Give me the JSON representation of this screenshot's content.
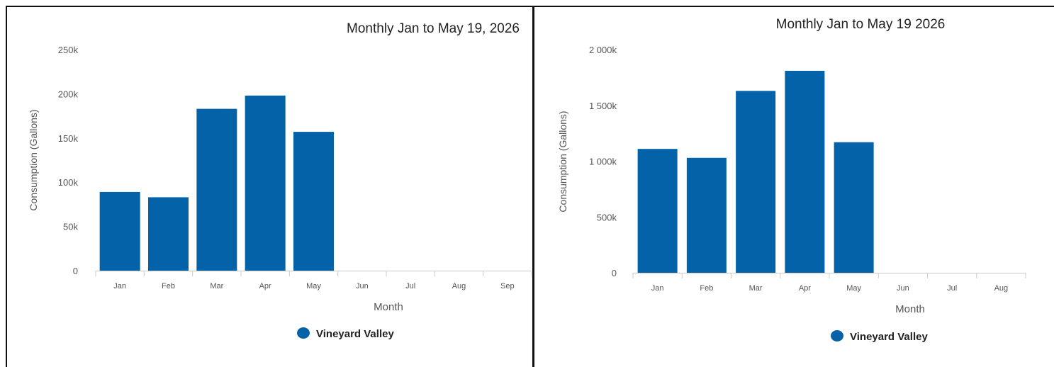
{
  "colors": {
    "bar": "#0462a9",
    "axis_text": "#555555",
    "title_text": "#222222",
    "legend_text": "#222222",
    "axis_line": "#cccccc",
    "border": "#111111"
  },
  "chart_data": [
    {
      "type": "bar",
      "title": "Monthly Jan to May 19, 2026",
      "xlabel": "Month",
      "ylabel": "Consumption (Gallons)",
      "categories": [
        "Jan",
        "Feb",
        "Mar",
        "Apr",
        "May",
        "Jun",
        "Jul",
        "Aug",
        "Sep"
      ],
      "y_ticks": [
        "0",
        "50k",
        "100k",
        "150k",
        "200k",
        "250k"
      ],
      "ylim": [
        0,
        250000
      ],
      "grid": false,
      "legend": "bottom-center",
      "series": [
        {
          "name": "Vineyard Valley",
          "values": [
            89000,
            83000,
            183000,
            198000,
            157000,
            null,
            null,
            null,
            null
          ]
        }
      ]
    },
    {
      "type": "bar",
      "title": "Monthly Jan to May 19 2026",
      "xlabel": "Month",
      "ylabel": "Consumption (Gallons)",
      "categories": [
        "Jan",
        "Feb",
        "Mar",
        "Apr",
        "May",
        "Jun",
        "Jul",
        "Aug"
      ],
      "y_ticks": [
        "0",
        "500k",
        "1 000k",
        "1 500k",
        "2 000k"
      ],
      "ylim": [
        0,
        2000000
      ],
      "grid": false,
      "legend": "bottom-center",
      "series": [
        {
          "name": "Vineyard Valley",
          "values": [
            1110000,
            1030000,
            1630000,
            1810000,
            1170000,
            null,
            null,
            null
          ]
        }
      ]
    }
  ]
}
